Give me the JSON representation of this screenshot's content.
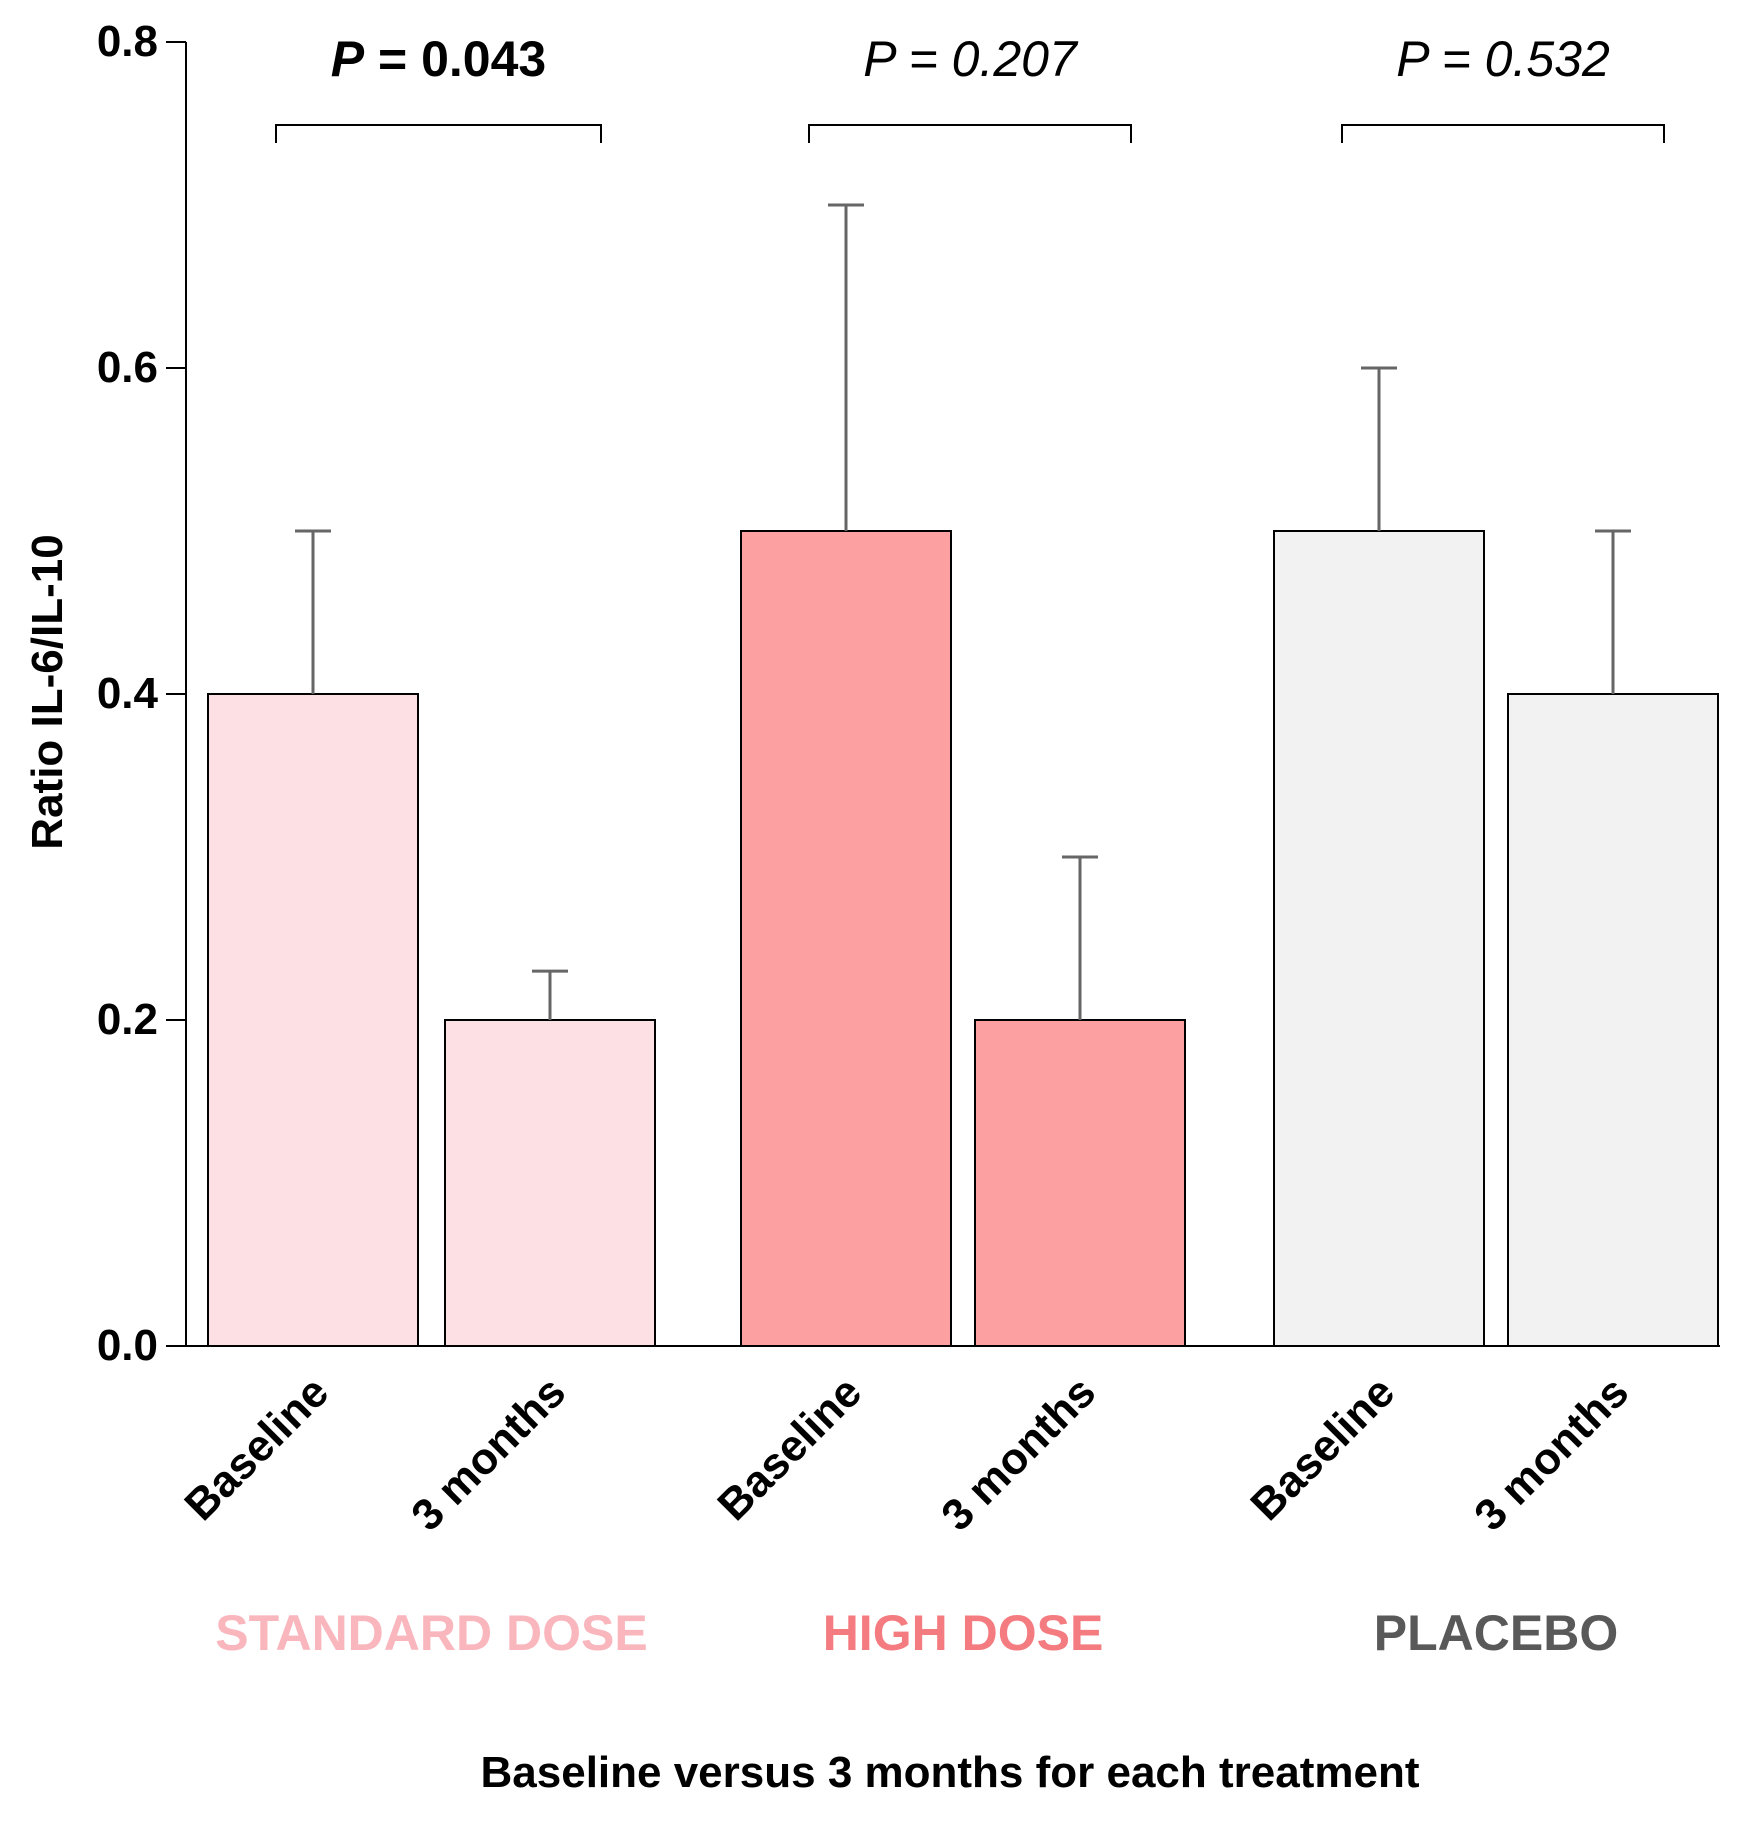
{
  "chart_data": {
    "type": "bar",
    "title": "",
    "xlabel": "Baseline versus 3 months for each treatment",
    "ylabel": "Ratio IL-6/IL-10",
    "ylim": [
      0,
      0.8
    ],
    "yticks": [
      "0.0",
      "0.2",
      "0.4",
      "0.6",
      "0.8"
    ],
    "grid": false,
    "groups": [
      {
        "name": "STANDARD DOSE",
        "color": "#f9b6bd",
        "fill": "#fde0e3",
        "p_label": "P",
        "p_value": "= 0.043",
        "p_bold": true,
        "bars": [
          {
            "label": "Baseline",
            "value": 0.4,
            "error_upper": 0.5
          },
          {
            "label": "3 months",
            "value": 0.2,
            "error_upper": 0.23
          }
        ]
      },
      {
        "name": "HIGH DOSE",
        "color": "#f47c80",
        "fill": "#fda0a2",
        "p_label": "P",
        "p_value": "= 0.207",
        "p_bold": false,
        "bars": [
          {
            "label": "Baseline",
            "value": 0.5,
            "error_upper": 0.7
          },
          {
            "label": "3 months",
            "value": 0.2,
            "error_upper": 0.3
          }
        ]
      },
      {
        "name": "PLACEBO",
        "color": "#595959",
        "fill": "#f2f2f2",
        "p_label": "P",
        "p_value": "= 0.532",
        "p_bold": false,
        "bars": [
          {
            "label": "Baseline",
            "value": 0.5,
            "error_upper": 0.6
          },
          {
            "label": "3 months",
            "value": 0.4,
            "error_upper": 0.5
          }
        ]
      }
    ]
  }
}
